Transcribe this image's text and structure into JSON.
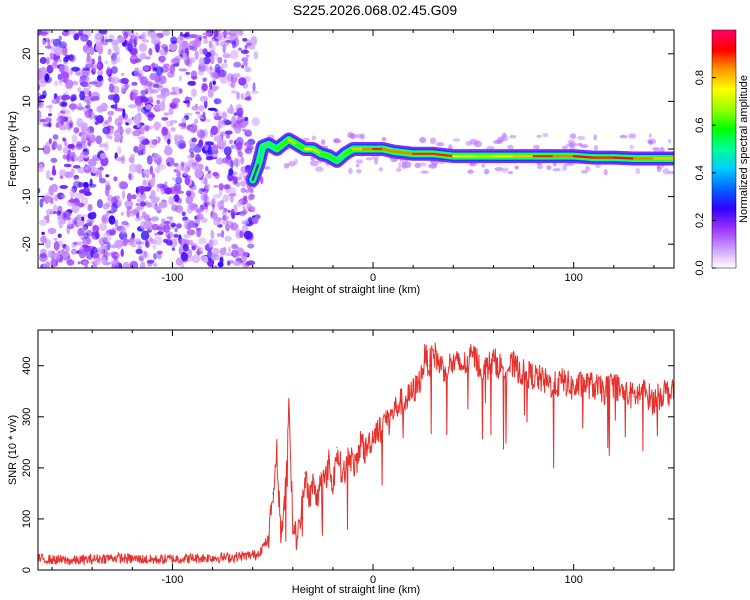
{
  "title": "S225.2026.068.02.45.G09",
  "chart_data": [
    {
      "type": "heatmap",
      "xlabel": "Height of straight line (km)",
      "ylabel": "Frequency (Hz)",
      "xlim": [
        -167,
        150
      ],
      "ylim": [
        -25,
        25
      ],
      "xticks": [
        -100,
        0,
        100
      ],
      "xtick_labels": [
        "-100",
        "0",
        "100"
      ],
      "yticks": [
        -20,
        -10,
        0,
        10,
        20
      ],
      "ytick_labels": [
        "-20",
        "-10",
        "0",
        "10",
        "20"
      ],
      "colorbar": {
        "label": "Normalized spectral amplitude",
        "range": [
          0,
          1
        ],
        "ticks": [
          0.0,
          0.2,
          0.4,
          0.6,
          0.8
        ],
        "tick_labels": [
          "0.0",
          "0.2",
          "0.4",
          "0.6",
          "0.8"
        ],
        "colormap": [
          "#ffffff",
          "#cc99ff",
          "#9933ff",
          "#3300ff",
          "#0066ff",
          "#00ccff",
          "#00ff99",
          "#00ff00",
          "#99ff00",
          "#ffff00",
          "#ff9900",
          "#ff0000",
          "#ff0066"
        ]
      },
      "noise_region_x": [
        -167,
        -60
      ],
      "signal_trace": {
        "x": [
          -60,
          -57,
          -55,
          -52,
          -48,
          -45,
          -42,
          -38,
          -34,
          -30,
          -26,
          -22,
          -18,
          -14,
          -10,
          -5,
          0,
          5,
          10,
          20,
          30,
          40,
          50,
          60,
          70,
          80,
          90,
          100,
          110,
          120,
          130,
          140,
          150
        ],
        "frequency": [
          -6.5,
          -3,
          0.5,
          1,
          0,
          1,
          2,
          1,
          0,
          0,
          -1,
          -1.5,
          -2.5,
          -1,
          0,
          0,
          0,
          0,
          -0.5,
          -1,
          -1,
          -1.5,
          -1.5,
          -1.5,
          -1.5,
          -1.5,
          -1.5,
          -1.5,
          -1.8,
          -1.8,
          -2,
          -2,
          -2
        ],
        "amplitude": [
          0.3,
          0.45,
          0.5,
          0.5,
          0.55,
          0.6,
          0.7,
          0.6,
          0.75,
          0.7,
          0.6,
          0.55,
          0.5,
          0.6,
          0.8,
          0.85,
          0.9,
          0.85,
          0.85,
          0.9,
          0.9,
          0.75,
          0.7,
          0.75,
          0.8,
          0.9,
          0.85,
          0.95,
          0.9,
          0.95,
          0.85,
          0.8,
          0.7
        ]
      }
    },
    {
      "type": "line",
      "xlabel": "Height of straight line (km)",
      "ylabel": "SNR (10 * v/v)",
      "xlim": [
        -167,
        150
      ],
      "ylim": [
        0,
        470
      ],
      "xticks": [
        -100,
        0,
        100
      ],
      "xtick_labels": [
        "-100",
        "0",
        "100"
      ],
      "yticks": [
        0,
        100,
        200,
        300,
        400
      ],
      "ytick_labels": [
        "0",
        "100",
        "200",
        "300",
        "400"
      ],
      "series": [
        {
          "name": "SNR",
          "color": "#e8302c",
          "x": [
            -167,
            -150,
            -130,
            -110,
            -90,
            -70,
            -58,
            -52,
            -50,
            -48,
            -46,
            -44,
            -42,
            -40,
            -38,
            -36,
            -34,
            -32,
            -30,
            -28,
            -26,
            -24,
            -22,
            -20,
            -18,
            -16,
            -14,
            -12,
            -10,
            -8,
            -6,
            -4,
            -2,
            0,
            2,
            4,
            6,
            8,
            10,
            12,
            14,
            16,
            18,
            20,
            22,
            24,
            26,
            28,
            30,
            32,
            35,
            40,
            45,
            50,
            55,
            60,
            65,
            70,
            75,
            80,
            85,
            90,
            95,
            100,
            105,
            110,
            115,
            120,
            125,
            130,
            135,
            140,
            145,
            150
          ],
          "values": [
            22,
            18,
            24,
            20,
            23,
            25,
            30,
            60,
            150,
            230,
            70,
            130,
            330,
            90,
            60,
            100,
            190,
            140,
            170,
            130,
            190,
            170,
            210,
            160,
            240,
            200,
            190,
            230,
            210,
            200,
            260,
            230,
            250,
            260,
            280,
            270,
            300,
            290,
            310,
            320,
            330,
            330,
            340,
            350,
            360,
            380,
            420,
            400,
            430,
            410,
            395,
            405,
            400,
            420,
            390,
            410,
            395,
            400,
            385,
            380,
            370,
            360,
            370,
            355,
            365,
            360,
            350,
            365,
            345,
            340,
            350,
            330,
            350,
            345
          ]
        }
      ]
    }
  ]
}
